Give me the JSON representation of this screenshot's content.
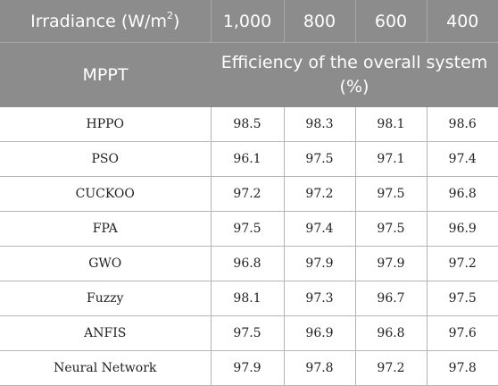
{
  "header": {
    "row1": {
      "irradiance_label_prefix": "Irradiance (W/m",
      "irradiance_label_sup": "2",
      "irradiance_label_suffix": ")",
      "levels": [
        "1,000",
        "800",
        "600",
        "400"
      ]
    },
    "row2": {
      "method_label": "MPPT",
      "efficiency_label": "Efficiency of the overall system (%)"
    }
  },
  "rows": [
    {
      "method": "HPPO",
      "values": [
        "98.5",
        "98.3",
        "98.1",
        "98.6"
      ]
    },
    {
      "method": "PSO",
      "values": [
        "96.1",
        "97.5",
        "97.1",
        "97.4"
      ]
    },
    {
      "method": "CUCKOO",
      "values": [
        "97.2",
        "97.2",
        "97.5",
        "96.8"
      ]
    },
    {
      "method": "FPA",
      "values": [
        "97.5",
        "97.4",
        "97.5",
        "96.9"
      ]
    },
    {
      "method": "GWO",
      "values": [
        "96.8",
        "97.9",
        "97.9",
        "97.2"
      ]
    },
    {
      "method": "Fuzzy",
      "values": [
        "98.1",
        "97.3",
        "96.7",
        "97.5"
      ]
    },
    {
      "method": "ANFIS",
      "values": [
        "97.5",
        "96.9",
        "96.8",
        "97.6"
      ]
    },
    {
      "method": "Neural Network",
      "values": [
        "97.9",
        "97.8",
        "97.2",
        "97.8"
      ]
    }
  ]
}
